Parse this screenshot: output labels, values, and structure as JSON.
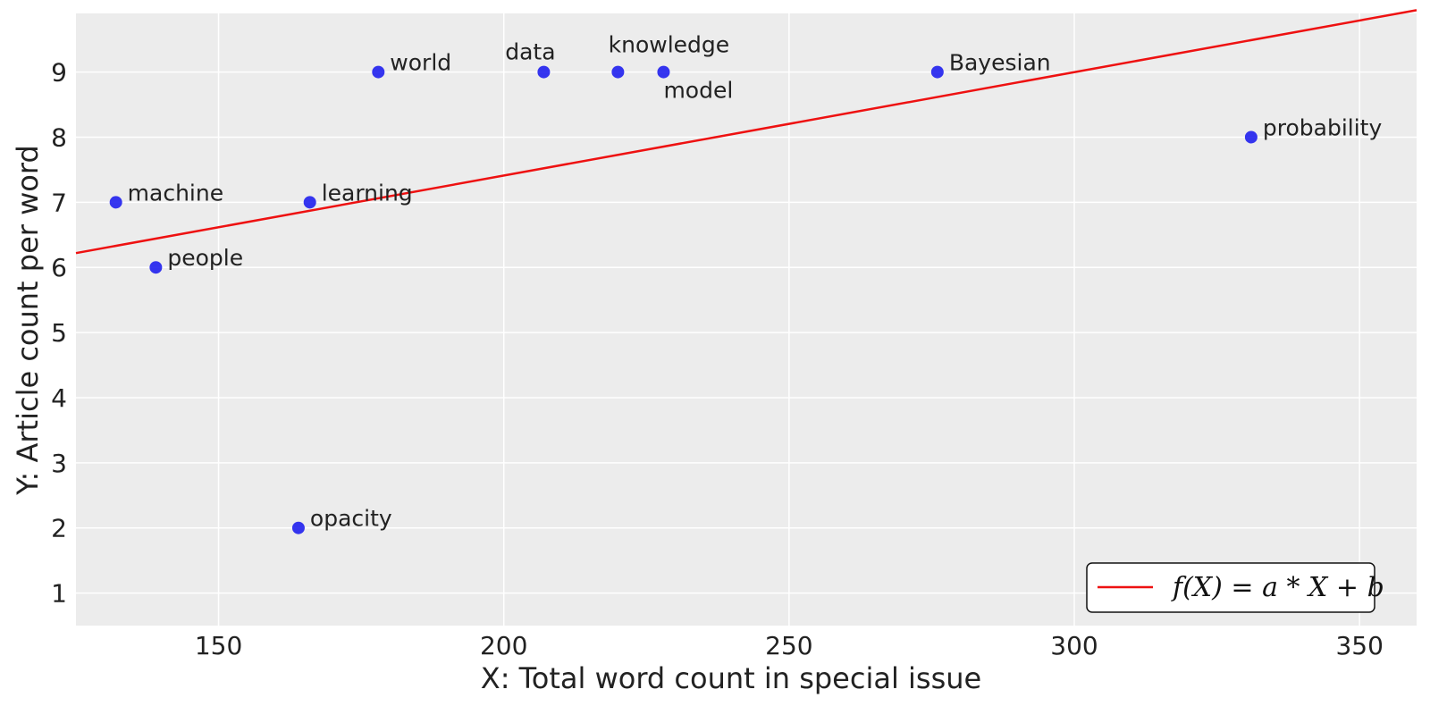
{
  "chart_data": {
    "type": "scatter",
    "title": "",
    "xlabel": "X: Total word count in special issue",
    "ylabel": "Y: Article count per word",
    "xlim": [
      125,
      360
    ],
    "ylim": [
      0.5,
      9.9
    ],
    "xticks": [
      150,
      200,
      250,
      300,
      350
    ],
    "yticks": [
      1,
      2,
      3,
      4,
      5,
      6,
      7,
      8,
      9
    ],
    "grid": true,
    "legend_position": "bottom-right",
    "colors": {
      "points": "#2020ee",
      "line": "#ee1111",
      "background": "#ececec",
      "grid": "#ffffff"
    },
    "points": [
      {
        "label": "machine",
        "x": 132,
        "y": 7,
        "label_pos": "right"
      },
      {
        "label": "people",
        "x": 139,
        "y": 6,
        "label_pos": "right"
      },
      {
        "label": "opacity",
        "x": 164,
        "y": 2,
        "label_pos": "right"
      },
      {
        "label": "learning",
        "x": 166,
        "y": 7,
        "label_pos": "right"
      },
      {
        "label": "world",
        "x": 178,
        "y": 9,
        "label_pos": "right"
      },
      {
        "label": "data",
        "x": 207,
        "y": 9,
        "label_pos": "above"
      },
      {
        "label": "knowledge",
        "x": 220,
        "y": 9,
        "label_pos": "above"
      },
      {
        "label": "model",
        "x": 228,
        "y": 9,
        "label_pos": "below"
      },
      {
        "label": "Bayesian",
        "x": 276,
        "y": 9,
        "label_pos": "right"
      },
      {
        "label": "probability",
        "x": 331,
        "y": 8,
        "label_pos": "right"
      }
    ],
    "fit_line": {
      "name": "f(X) = a * X + b",
      "x": [
        125,
        360
      ],
      "y": [
        6.22,
        9.95
      ]
    }
  }
}
